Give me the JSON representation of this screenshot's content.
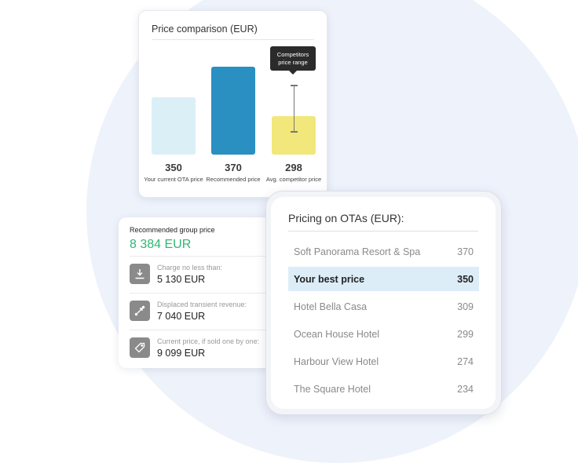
{
  "price_comparison": {
    "title": "Price comparison (EUR)",
    "tooltip": "Competitors price range",
    "chart_data": {
      "type": "bar",
      "categories": [
        "Your current OTA price",
        "Recommended price",
        "Avg. competitor price"
      ],
      "values": [
        350,
        370,
        298
      ],
      "colors": [
        "#dbeff7",
        "#2a8fc1",
        "#f2e77a"
      ],
      "competitor_range": [
        270,
        330
      ]
    }
  },
  "group": {
    "title": "Recommended group price",
    "value": "8 384 EUR",
    "accent": "#2fb872",
    "rows": [
      {
        "icon": "download-icon",
        "label": "Charge no less than:",
        "value": "5 130 EUR"
      },
      {
        "icon": "expand-arrows-icon",
        "label": "Displaced transient revenue:",
        "value": "7 040 EUR"
      },
      {
        "icon": "price-tag-icon",
        "label": "Current price, if sold one by one:",
        "value": "9 099 EUR"
      }
    ]
  },
  "ota": {
    "title": "Pricing on OTAs (EUR):",
    "rows": [
      {
        "name": "Soft Panorama Resort & Spa",
        "price": "370"
      },
      {
        "name": "Your best price",
        "price": "350",
        "highlight": true
      },
      {
        "name": "Hotel Bella Casa",
        "price": "309"
      },
      {
        "name": "Ocean House Hotel",
        "price": "299"
      },
      {
        "name": "Harbour View Hotel",
        "price": "274"
      },
      {
        "name": "The Square Hotel",
        "price": "234"
      }
    ]
  }
}
